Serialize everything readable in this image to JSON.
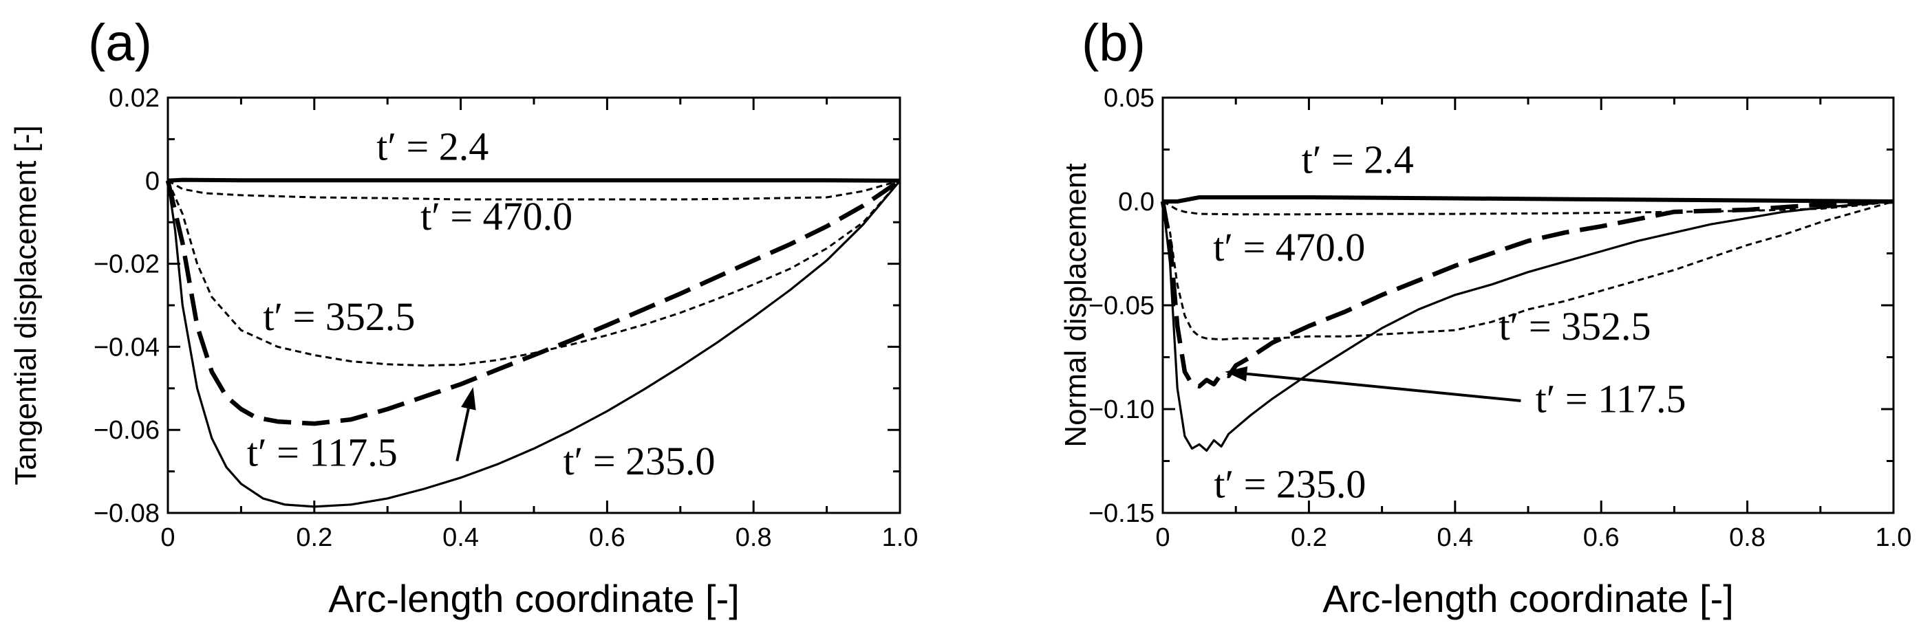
{
  "chart_data": [
    {
      "panel": "(a)",
      "type": "line",
      "xlabel": "Arc-length coordinate [-]",
      "ylabel": "Tangential displacement [-]",
      "xlim": [
        0,
        1.0
      ],
      "ylim": [
        -0.08,
        0.02
      ],
      "x_ticks": [
        0,
        0.2,
        0.4,
        0.6,
        0.8,
        1.0
      ],
      "x_tick_labels": [
        "0",
        "0.2",
        "0.4",
        "0.6",
        "0.8",
        "1.0"
      ],
      "y_ticks": [
        0.02,
        0,
        -0.02,
        -0.04,
        -0.06,
        -0.08
      ],
      "y_tick_labels": [
        "0.02",
        "0",
        "−0.02",
        "−0.04",
        "−0.06",
        "−0.08"
      ],
      "grid": false,
      "series": [
        {
          "name": "t′ = 2.4",
          "style": "thick-solid",
          "x": [
            0,
            0.02,
            0.1,
            0.3,
            0.5,
            0.7,
            0.9,
            1.0
          ],
          "y": [
            0,
            0.0002,
            0.0001,
            0.0001,
            0.0001,
            0.0001,
            0.0001,
            0
          ]
        },
        {
          "name": "t′ = 470.0",
          "style": "fine-dash",
          "x": [
            0,
            0.02,
            0.05,
            0.1,
            0.2,
            0.3,
            0.4,
            0.5,
            0.6,
            0.7,
            0.8,
            0.9,
            0.95,
            1.0
          ],
          "y": [
            0,
            -0.002,
            -0.003,
            -0.0035,
            -0.004,
            -0.0042,
            -0.0045,
            -0.0045,
            -0.0045,
            -0.0045,
            -0.0043,
            -0.004,
            -0.0025,
            0
          ]
        },
        {
          "name": "t′ = 352.5",
          "style": "fine-dash",
          "x": [
            0,
            0.02,
            0.04,
            0.06,
            0.1,
            0.15,
            0.2,
            0.25,
            0.3,
            0.35,
            0.4,
            0.45,
            0.5,
            0.55,
            0.6,
            0.65,
            0.7,
            0.75,
            0.8,
            0.85,
            0.9,
            0.95,
            1.0
          ],
          "y": [
            0,
            -0.008,
            -0.02,
            -0.028,
            -0.036,
            -0.04,
            -0.042,
            -0.0435,
            -0.0442,
            -0.0445,
            -0.0443,
            -0.0432,
            -0.0415,
            -0.0395,
            -0.0372,
            -0.0347,
            -0.0318,
            -0.0285,
            -0.025,
            -0.0212,
            -0.0163,
            -0.01,
            0
          ]
        },
        {
          "name": "t′ = 117.5",
          "style": "long-dash",
          "x": [
            0,
            0.02,
            0.04,
            0.06,
            0.08,
            0.1,
            0.12,
            0.15,
            0.2,
            0.25,
            0.3,
            0.35,
            0.4,
            0.45,
            0.5,
            0.55,
            0.6,
            0.65,
            0.7,
            0.75,
            0.8,
            0.85,
            0.9,
            0.95,
            1.0
          ],
          "y": [
            0,
            -0.015,
            -0.035,
            -0.046,
            -0.052,
            -0.055,
            -0.057,
            -0.058,
            -0.0585,
            -0.0575,
            -0.055,
            -0.052,
            -0.049,
            -0.0455,
            -0.042,
            -0.0385,
            -0.0348,
            -0.031,
            -0.0272,
            -0.0232,
            -0.0192,
            -0.0153,
            -0.011,
            -0.006,
            0
          ]
        },
        {
          "name": "t′ = 235.0",
          "style": "solid",
          "x": [
            0,
            0.01,
            0.02,
            0.04,
            0.06,
            0.08,
            0.1,
            0.13,
            0.16,
            0.2,
            0.25,
            0.3,
            0.35,
            0.4,
            0.45,
            0.5,
            0.55,
            0.6,
            0.65,
            0.7,
            0.75,
            0.8,
            0.85,
            0.9,
            0.95,
            1.0
          ],
          "y": [
            0,
            -0.012,
            -0.03,
            -0.05,
            -0.062,
            -0.069,
            -0.073,
            -0.0765,
            -0.078,
            -0.0785,
            -0.078,
            -0.0765,
            -0.0742,
            -0.0715,
            -0.0683,
            -0.0645,
            -0.0602,
            -0.0555,
            -0.0503,
            -0.0448,
            -0.039,
            -0.0328,
            -0.0263,
            -0.0192,
            -0.0105,
            0
          ]
        }
      ],
      "annotations": [
        {
          "text": "t′ = 2.4",
          "x": 0.285,
          "y": 0.005
        },
        {
          "text": "t′ = 470.0",
          "x": 0.345,
          "y": -0.0118
        },
        {
          "text": "t′ = 352.5",
          "x": 0.13,
          "y": -0.036
        },
        {
          "text": "t′ = 117.5",
          "x": 0.108,
          "y": -0.0687
        },
        {
          "text": "t′ = 235.0",
          "x": 0.54,
          "y": -0.0707
        }
      ],
      "arrows": [
        {
          "from": [
            0.395,
            -0.0675
          ],
          "to": [
            0.417,
            -0.0497
          ]
        }
      ]
    },
    {
      "panel": "(b)",
      "type": "line",
      "xlabel": "Arc-length coordinate [-]",
      "ylabel": "Normal displacement",
      "xlim": [
        0,
        1.0
      ],
      "ylim": [
        -0.15,
        0.05
      ],
      "x_ticks": [
        0,
        0.2,
        0.4,
        0.6,
        0.8,
        1.0
      ],
      "x_tick_labels": [
        "0",
        "0.2",
        "0.4",
        "0.6",
        "0.8",
        "1.0"
      ],
      "y_ticks": [
        0.05,
        0.0,
        -0.05,
        -0.1,
        -0.15
      ],
      "y_tick_labels": [
        "0.05",
        "0.0",
        "−0.05",
        "−0.10",
        "−0.15"
      ],
      "grid": false,
      "series": [
        {
          "name": "t′ = 2.4",
          "style": "thick-solid",
          "x": [
            0,
            0.02,
            0.05,
            0.1,
            0.2,
            0.4,
            0.6,
            0.8,
            1.0
          ],
          "y": [
            0,
            0.0,
            0.002,
            0.002,
            0.002,
            0.0015,
            0.001,
            0.0005,
            0
          ]
        },
        {
          "name": "t′ = 470.0",
          "style": "fine-dash",
          "x": [
            0,
            0.01,
            0.02,
            0.03,
            0.05,
            0.1,
            0.2,
            0.3,
            0.4,
            0.5,
            0.6,
            0.7,
            0.8,
            0.85,
            0.9,
            0.95,
            1.0
          ],
          "y": [
            0,
            -0.002,
            -0.004,
            -0.005,
            -0.006,
            -0.0062,
            -0.0062,
            -0.006,
            -0.006,
            -0.0058,
            -0.0055,
            -0.005,
            -0.0045,
            -0.004,
            -0.0035,
            -0.002,
            0
          ]
        },
        {
          "name": "t′ = 352.5",
          "style": "fine-dash",
          "x": [
            0,
            0.01,
            0.02,
            0.03,
            0.04,
            0.05,
            0.06,
            0.08,
            0.1,
            0.15,
            0.2,
            0.25,
            0.3,
            0.35,
            0.4,
            0.45,
            0.5,
            0.55,
            0.6,
            0.65,
            0.7,
            0.75,
            0.8,
            0.85,
            0.9,
            0.95,
            1.0
          ],
          "y": [
            0,
            -0.015,
            -0.04,
            -0.055,
            -0.062,
            -0.065,
            -0.066,
            -0.0665,
            -0.066,
            -0.066,
            -0.065,
            -0.065,
            -0.064,
            -0.063,
            -0.062,
            -0.058,
            -0.052,
            -0.048,
            -0.043,
            -0.038,
            -0.033,
            -0.027,
            -0.021,
            -0.016,
            -0.01,
            -0.005,
            0
          ]
        },
        {
          "name": "t′ = 117.5",
          "style": "long-dash",
          "x": [
            0,
            0.01,
            0.02,
            0.03,
            0.04,
            0.05,
            0.06,
            0.07,
            0.08,
            0.09,
            0.1,
            0.12,
            0.15,
            0.2,
            0.25,
            0.3,
            0.35,
            0.4,
            0.45,
            0.5,
            0.55,
            0.6,
            0.65,
            0.7,
            0.8,
            0.9,
            1.0
          ],
          "y": [
            0,
            -0.02,
            -0.06,
            -0.082,
            -0.088,
            -0.089,
            -0.086,
            -0.088,
            -0.083,
            -0.084,
            -0.079,
            -0.075,
            -0.068,
            -0.06,
            -0.053,
            -0.045,
            -0.038,
            -0.031,
            -0.025,
            -0.019,
            -0.015,
            -0.012,
            -0.0085,
            -0.005,
            -0.004,
            -0.0015,
            0
          ]
        },
        {
          "name": "t′ = 235.0",
          "style": "solid",
          "x": [
            0,
            0.01,
            0.02,
            0.03,
            0.04,
            0.05,
            0.06,
            0.07,
            0.08,
            0.09,
            0.1,
            0.12,
            0.15,
            0.2,
            0.25,
            0.3,
            0.35,
            0.4,
            0.45,
            0.5,
            0.55,
            0.6,
            0.65,
            0.7,
            0.75,
            0.8,
            0.85,
            0.9,
            0.95,
            1.0
          ],
          "y": [
            0,
            -0.03,
            -0.09,
            -0.113,
            -0.119,
            -0.117,
            -0.12,
            -0.115,
            -0.118,
            -0.112,
            -0.109,
            -0.103,
            -0.095,
            -0.083,
            -0.072,
            -0.061,
            -0.052,
            -0.045,
            -0.04,
            -0.034,
            -0.029,
            -0.024,
            -0.019,
            -0.015,
            -0.011,
            -0.008,
            -0.005,
            -0.003,
            -0.0015,
            0
          ]
        }
      ],
      "annotations": [
        {
          "text": "t′ = 2.4",
          "x": 0.19,
          "y": 0.0138
        },
        {
          "text": "t′ = 470.0",
          "x": 0.069,
          "y": -0.0285
        },
        {
          "text": "t′ = 352.5",
          "x": 0.46,
          "y": -0.0665
        },
        {
          "text": "t′ = 117.5",
          "x": 0.51,
          "y": -0.1015
        },
        {
          "text": "t′ = 235.0",
          "x": 0.07,
          "y": -0.1425
        }
      ],
      "arrows": [
        {
          "from": [
            0.49,
            -0.096
          ],
          "to": [
            0.085,
            -0.082
          ]
        }
      ]
    }
  ]
}
